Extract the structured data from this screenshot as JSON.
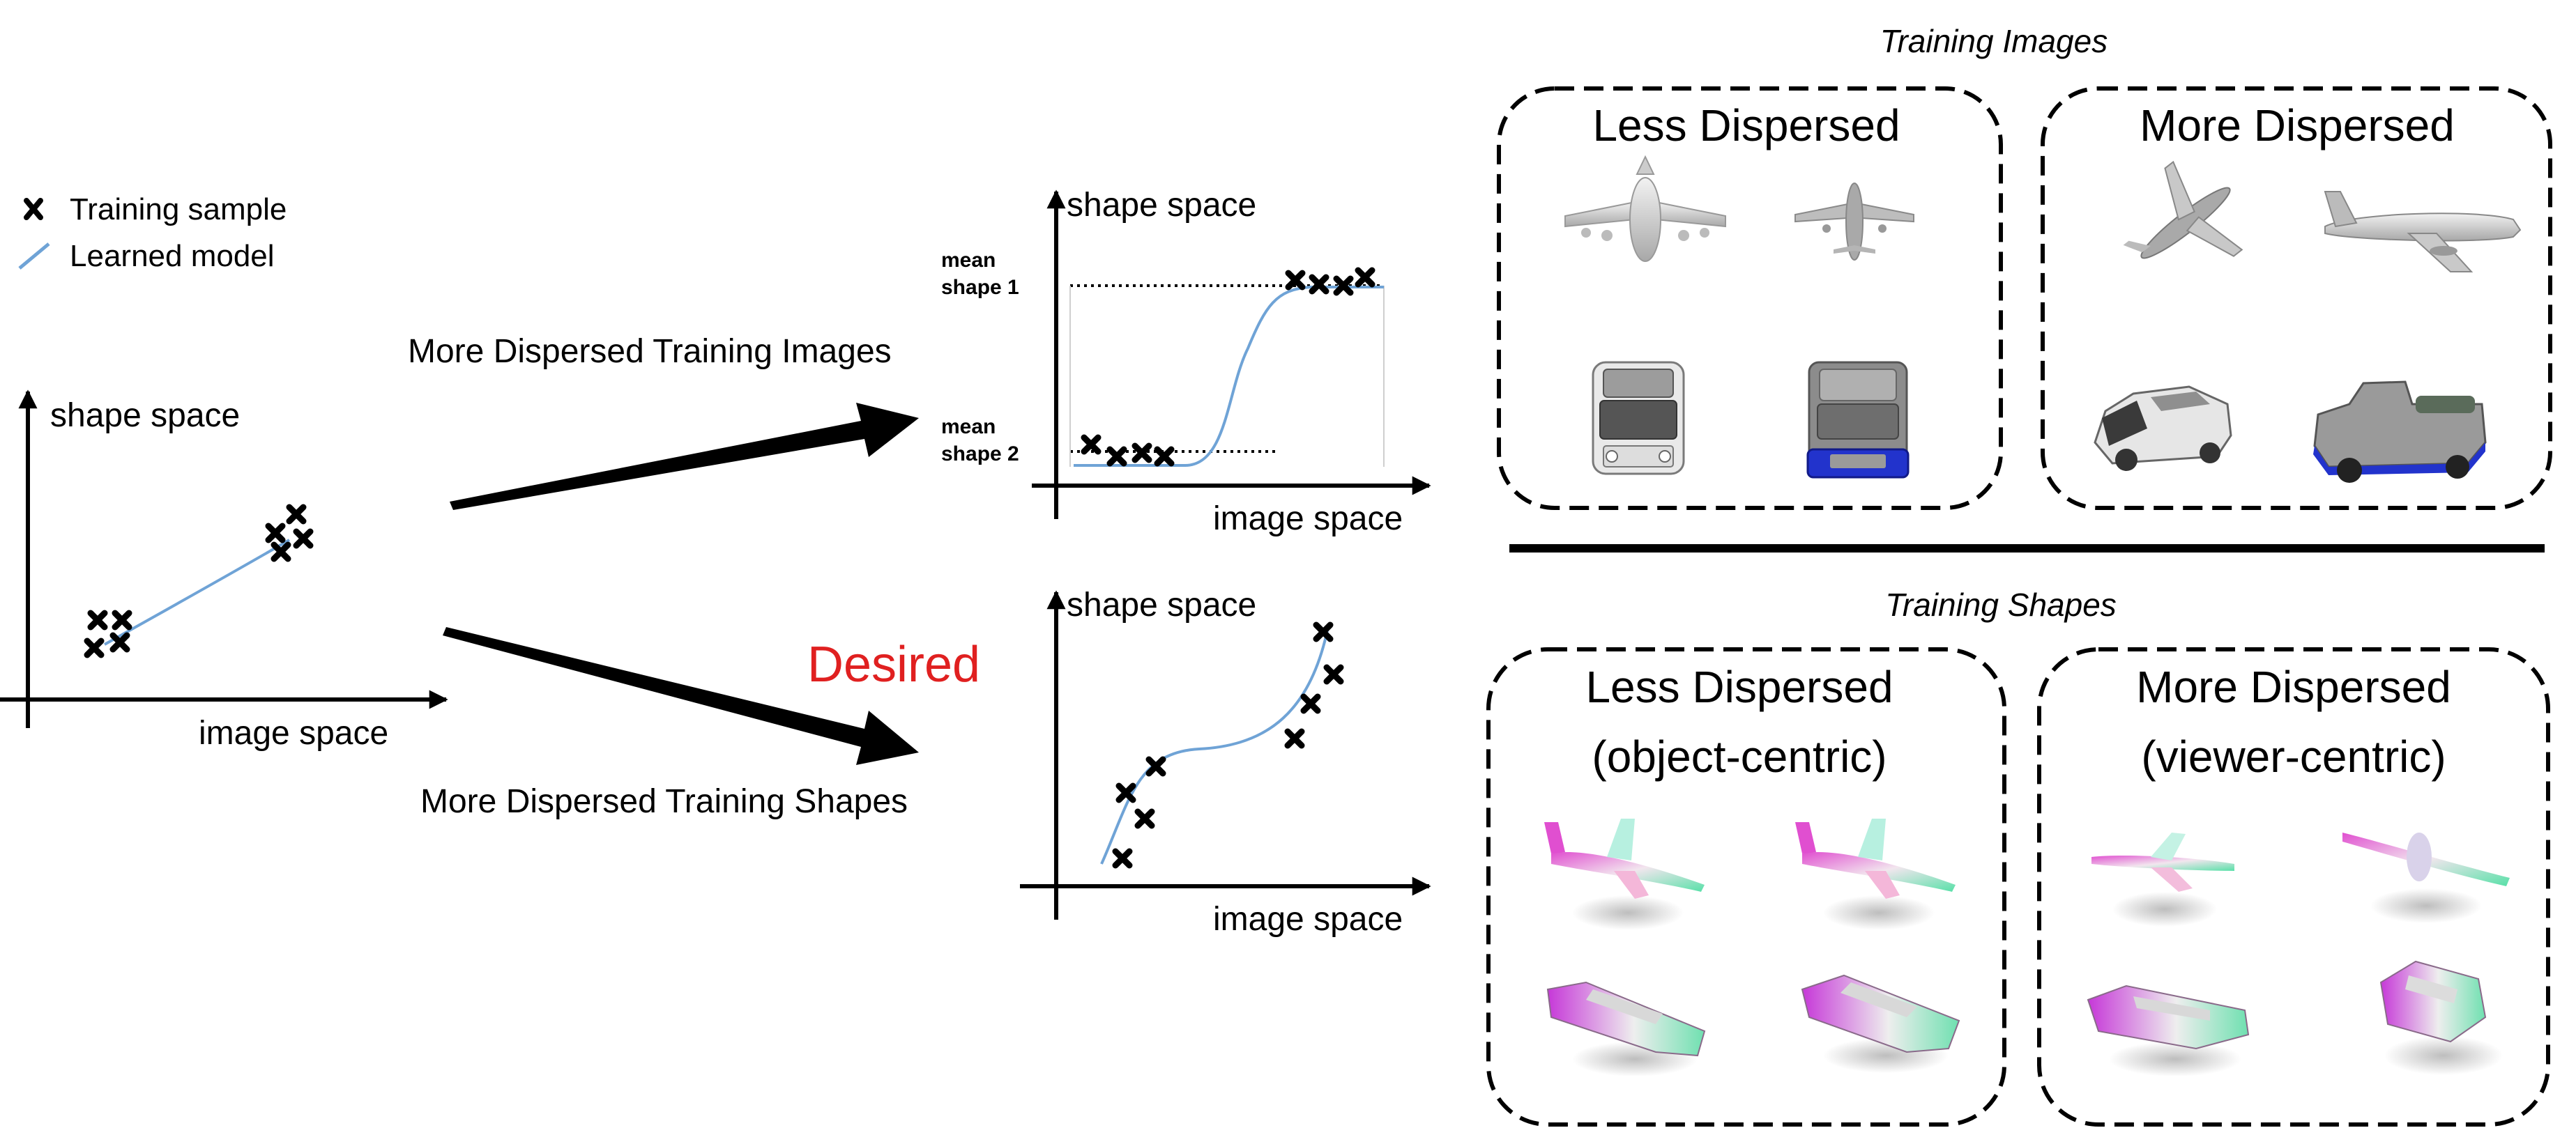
{
  "legend": {
    "sample_label": "Training sample",
    "model_label": "Learned model",
    "sample_icon": "x-mark-icon",
    "model_icon": "line-segment-icon",
    "model_color": "#6fa3d6"
  },
  "left_plot": {
    "y_label": "shape space",
    "x_label": "image space"
  },
  "arrows": {
    "upper_label": "More Dispersed Training Images",
    "lower_label": "More Dispersed Training Shapes"
  },
  "top_plot": {
    "y_label": "shape space",
    "x_label": "image space",
    "mean1_line1": "mean",
    "mean1_line2": "shape 1",
    "mean2_line1": "mean",
    "mean2_line2": "shape 2"
  },
  "bottom_plot": {
    "y_label": "shape space",
    "x_label": "image space",
    "desired_label": "Desired",
    "desired_color": "#e02020"
  },
  "training_images": {
    "title": "Training Images",
    "less_title": "Less Dispersed",
    "more_title": "More Dispersed"
  },
  "training_shapes": {
    "title": "Training Shapes",
    "less_line1": "Less Dispersed",
    "less_line2": "(object-centric)",
    "more_line1": "More Dispersed",
    "more_line2": "(viewer-centric)"
  }
}
